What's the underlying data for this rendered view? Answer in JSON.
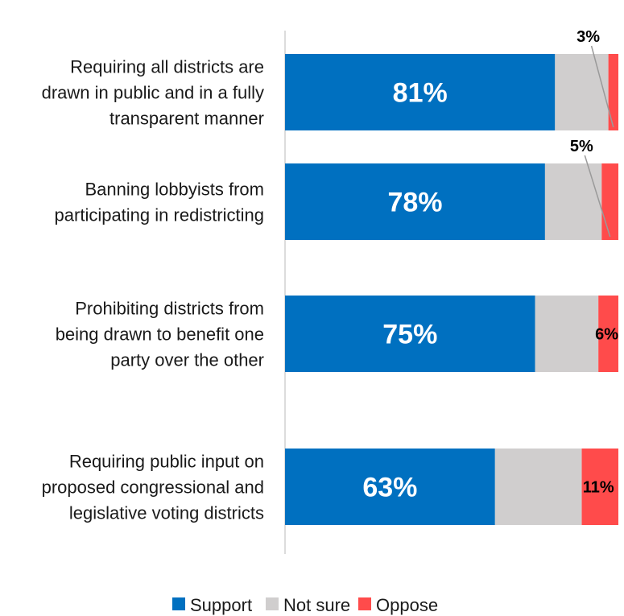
{
  "chart_data": {
    "type": "bar",
    "orientation": "horizontal",
    "stacked": true,
    "percent_scale": true,
    "categories": [
      [
        "Requiring all districts are",
        "drawn in public and in a fully",
        "transparent manner"
      ],
      [
        "Banning lobbyists from",
        "participating in redistricting"
      ],
      [
        "Prohibiting districts from",
        "being drawn to benefit one",
        "party over the other"
      ],
      [
        "Requiring public input on",
        "proposed congressional and",
        "legislative voting districts"
      ]
    ],
    "series": [
      {
        "name": "Support",
        "color": "#0070C0",
        "values": [
          81,
          78,
          75,
          63
        ],
        "labels": [
          "81%",
          "78%",
          "75%",
          "63%"
        ]
      },
      {
        "name": "Not sure",
        "color": "#D0CECE",
        "values": [
          16,
          17,
          19,
          26
        ],
        "labels": [
          "",
          "",
          "",
          ""
        ]
      },
      {
        "name": "Oppose",
        "color": "#FF4B4B",
        "values": [
          3,
          5,
          6,
          11
        ],
        "labels": [
          "3%",
          "5%",
          "6%",
          "11%"
        ]
      }
    ],
    "xlim": [
      0,
      100
    ],
    "grid": false,
    "legend_position": "bottom"
  }
}
